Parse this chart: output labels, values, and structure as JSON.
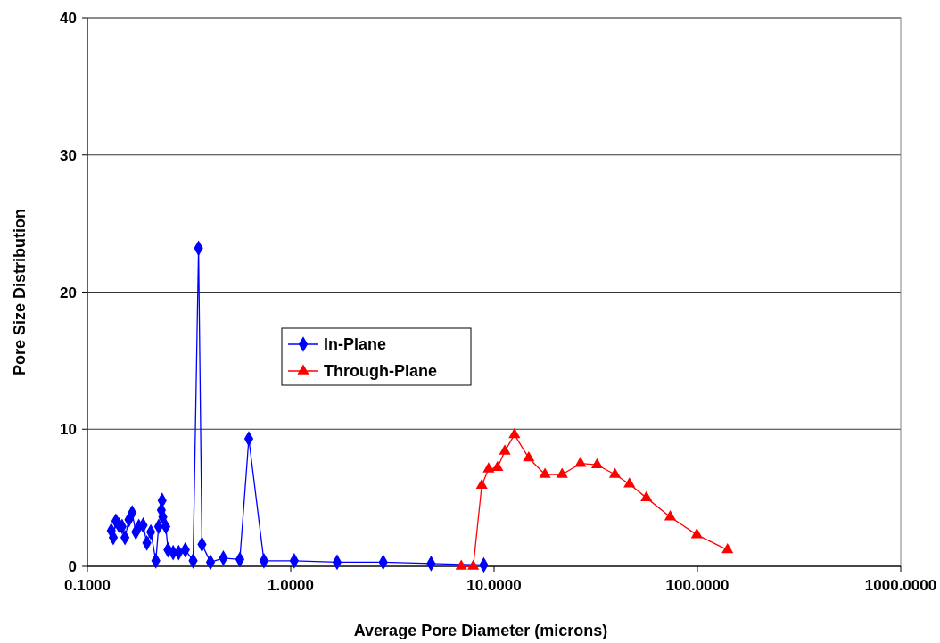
{
  "chart_data": {
    "type": "line",
    "xlabel": "Average Pore Diameter (microns)",
    "ylabel": "Pore Size Distribution",
    "log": "x",
    "xlim": [
      0.1,
      1000
    ],
    "xticks": [
      {
        "value": 0.1,
        "label": "0.1000"
      },
      {
        "value": 1,
        "label": "1.0000"
      },
      {
        "value": 10,
        "label": "10.0000"
      },
      {
        "value": 100,
        "label": "100.0000"
      },
      {
        "value": 1000,
        "label": "1000.0000"
      }
    ],
    "ylim": [
      0,
      40
    ],
    "yticks": [
      0,
      10,
      20,
      30,
      40
    ],
    "grid": "y",
    "legend": "center",
    "series": [
      {
        "name": "In-Plane",
        "color": "#0000ff",
        "marker": "diamond",
        "x": [
          0.131,
          0.134,
          0.138,
          0.143,
          0.148,
          0.153,
          0.16,
          0.166,
          0.173,
          0.179,
          0.188,
          0.196,
          0.205,
          0.217,
          0.224,
          0.231,
          0.233,
          0.235,
          0.243,
          0.249,
          0.264,
          0.281,
          0.303,
          0.331,
          0.352,
          0.366,
          0.403,
          0.466,
          0.562,
          0.622,
          0.738,
          1.04,
          1.69,
          2.85,
          4.9,
          8.9
        ],
        "values": [
          2.6,
          2.1,
          3.3,
          3.0,
          2.9,
          2.1,
          3.4,
          3.9,
          2.5,
          2.9,
          3.0,
          1.7,
          2.5,
          0.4,
          2.9,
          4.1,
          4.8,
          3.6,
          2.9,
          1.2,
          1.0,
          1.0,
          1.2,
          0.4,
          23.2,
          1.6,
          0.3,
          0.6,
          0.5,
          9.3,
          0.4,
          0.4,
          0.3,
          0.3,
          0.2,
          0.1
        ]
      },
      {
        "name": "Through-Plane",
        "color": "#ff0000",
        "marker": "triangle",
        "x": [
          6.9,
          7.9,
          8.7,
          9.4,
          10.4,
          11.3,
          12.6,
          14.8,
          17.8,
          21.6,
          26.6,
          32.1,
          39.3,
          46.3,
          56.1,
          73.5,
          99.3,
          140.6
        ],
        "values": [
          0,
          0,
          5.9,
          7.1,
          7.2,
          8.4,
          9.6,
          7.9,
          6.7,
          6.7,
          7.5,
          7.4,
          6.7,
          6.0,
          5.0,
          3.6,
          2.3,
          1.2
        ]
      }
    ]
  }
}
